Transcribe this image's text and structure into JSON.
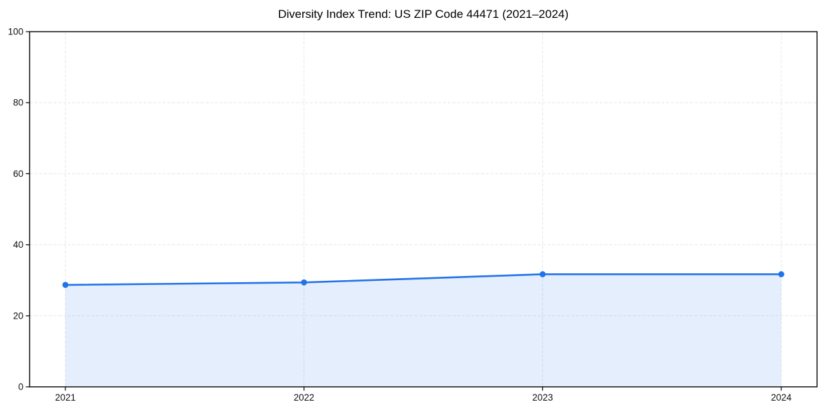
{
  "chart_data": {
    "type": "area",
    "title": "Diversity Index Trend: US ZIP Code 44471 (2021–2024)",
    "x": [
      2021,
      2022,
      2023,
      2024
    ],
    "x_tick_labels": [
      "2021",
      "2022",
      "2023",
      "2024"
    ],
    "series": [
      {
        "name": "Diversity Index",
        "values": [
          28.7,
          29.4,
          31.7,
          31.7
        ]
      }
    ],
    "xlabel": "",
    "ylabel": "",
    "ylim": [
      0,
      100
    ],
    "y_ticks": [
      0,
      20,
      40,
      60,
      80,
      100
    ],
    "grid": "dashed",
    "legend_position": "none",
    "colors": {
      "line": "#2273e8",
      "marker": "#2273e8",
      "area_fill": "rgba(34, 115, 230, 0.12)",
      "grid": "#e7e7e7",
      "axis": "#000000",
      "tick_label": "#111111",
      "title": "#000000",
      "background": "#ffffff"
    }
  }
}
